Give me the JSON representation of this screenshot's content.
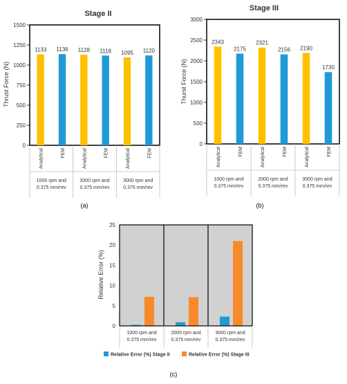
{
  "colors": {
    "analytical": "#FFC000",
    "fem": "#1F9AD6",
    "stage2": "#1F9AD6",
    "stage3": "#F98A2A",
    "plot_bg_c": "#D1D1D1"
  },
  "chart_data": [
    {
      "type": "bar",
      "panel_label": "(a)",
      "title": "Stage II",
      "ylabel": "Thrust Force (N)",
      "ylim": [
        0,
        1500
      ],
      "yticks": [
        "0",
        "250",
        "500",
        "750",
        "1000",
        "1250",
        "1500"
      ],
      "groups": [
        "1000 rpm and 0.375 mm/rev",
        "2000 rpm and 0.375 mm/rev",
        "3000 rpm and 0.375 mm/rev"
      ],
      "group_lines": [
        [
          "1000 rpm and",
          "0.375 mm/rev"
        ],
        [
          "2000 rpm and",
          "0.375 mm/rev"
        ],
        [
          "3000 rpm and",
          "0.375 mm/rev"
        ]
      ],
      "bars": [
        {
          "label": "Analytical",
          "value": 1133
        },
        {
          "label": "FEM",
          "value": 1136
        },
        {
          "label": "Analytical",
          "value": 1128
        },
        {
          "label": "FEM",
          "value": 1118
        },
        {
          "label": "Analytical",
          "value": 1095
        },
        {
          "label": "FEM",
          "value": 1120
        }
      ]
    },
    {
      "type": "bar",
      "panel_label": "(b)",
      "title": "Stage III",
      "ylabel": "Thurst Force (N)",
      "ylim": [
        0,
        3000
      ],
      "yticks": [
        "0",
        "500",
        "1000",
        "1500",
        "2000",
        "2500",
        "3000"
      ],
      "groups": [
        "1000 rpm and 0.375 mm/rev",
        "2000 rpm and 0.375 mm/rev",
        "3000 rpm and 0.375 mm/rev"
      ],
      "group_lines": [
        [
          "1000 rpm and",
          "0.375 mm/rev"
        ],
        [
          "2000 rpm and",
          "0.375 mm/rev"
        ],
        [
          "3000 rpm and",
          "0.375 mm/rev"
        ]
      ],
      "bars": [
        {
          "label": "Analytical",
          "value": 2343
        },
        {
          "label": "FEM",
          "value": 2175
        },
        {
          "label": "Analytical",
          "value": 2321
        },
        {
          "label": "FEM",
          "value": 2156
        },
        {
          "label": "Analytical",
          "value": 2190
        },
        {
          "label": "FEM",
          "value": 1730
        }
      ]
    },
    {
      "type": "bar",
      "panel_label": "(c)",
      "ylabel": "Relative Error (%)",
      "ylim": [
        0,
        25
      ],
      "yticks": [
        "0",
        "5",
        "10",
        "15",
        "20",
        "25"
      ],
      "categories": [
        "1000 rpm and 0.375 mm/rev",
        "2000 rpm and 0.375 mm/rev",
        "3000 rpm and 0.375 mm/rev"
      ],
      "category_lines": [
        [
          "1000 rpm and",
          "0.375 mm/rev"
        ],
        [
          "2000 rpm and",
          "0.375 mm/rev"
        ],
        [
          "3000 rpm and",
          "0.375 mm/rev"
        ]
      ],
      "series": [
        {
          "name": "Relative Error (%) Stage II",
          "values": [
            0.26,
            0.9,
            2.3
          ]
        },
        {
          "name": "Relative Error (%) Stage III",
          "values": [
            7.2,
            7.1,
            21.0
          ]
        }
      ],
      "legend_position": "bottom"
    }
  ]
}
